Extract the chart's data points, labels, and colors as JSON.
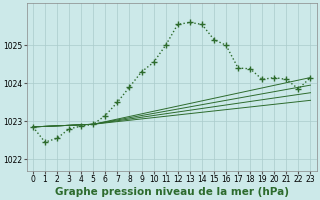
{
  "background_color": "#cce9e9",
  "grid_color": "#aacccc",
  "line_color": "#2d6b2d",
  "xlabel": "Graphe pression niveau de la mer (hPa)",
  "xlabel_fontsize": 7.5,
  "xlim": [
    -0.5,
    23.5
  ],
  "ylim": [
    1021.7,
    1026.1
  ],
  "yticks": [
    1022,
    1023,
    1024,
    1025
  ],
  "xticks": [
    0,
    1,
    2,
    3,
    4,
    5,
    6,
    7,
    8,
    9,
    10,
    11,
    12,
    13,
    14,
    15,
    16,
    17,
    18,
    19,
    20,
    21,
    22,
    23
  ],
  "main_series": {
    "x": [
      0,
      1,
      2,
      3,
      4,
      5,
      6,
      7,
      8,
      9,
      10,
      11,
      12,
      13,
      14,
      15,
      16,
      17,
      18,
      19,
      20,
      21,
      22,
      23
    ],
    "y": [
      1022.85,
      1022.45,
      1022.55,
      1022.8,
      1022.87,
      1022.92,
      1023.15,
      1023.5,
      1023.9,
      1024.3,
      1024.55,
      1025.0,
      1025.55,
      1025.6,
      1025.55,
      1025.15,
      1025.0,
      1024.4,
      1024.38,
      1024.1,
      1024.15,
      1024.1,
      1023.85,
      1024.15
    ]
  },
  "fan_lines": [
    {
      "x": [
        0,
        5,
        23
      ],
      "y": [
        1022.85,
        1022.92,
        1024.15
      ]
    },
    {
      "x": [
        0,
        5,
        23
      ],
      "y": [
        1022.85,
        1022.92,
        1023.95
      ]
    },
    {
      "x": [
        0,
        5,
        23
      ],
      "y": [
        1022.85,
        1022.92,
        1023.75
      ]
    },
    {
      "x": [
        0,
        5,
        23
      ],
      "y": [
        1022.85,
        1022.92,
        1023.55
      ]
    }
  ]
}
